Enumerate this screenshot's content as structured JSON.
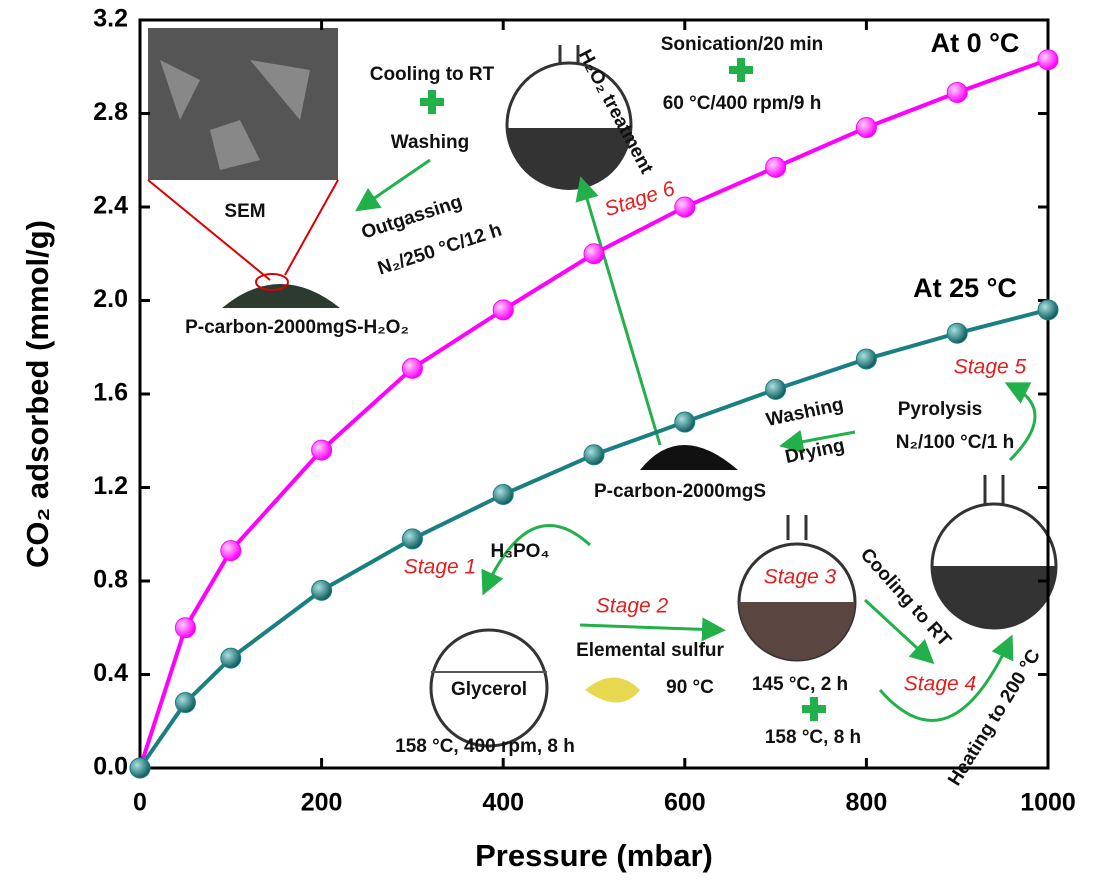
{
  "chart_data": {
    "type": "line",
    "x_label": "Pressure (mbar)",
    "y_label": "CO₂ adsorbed (mmol/g)",
    "x": [
      0,
      50,
      100,
      200,
      300,
      400,
      500,
      600,
      700,
      800,
      900,
      1000
    ],
    "series": [
      {
        "name": "At 0 °C",
        "color": "#ff00ff",
        "values": [
          0,
          0.6,
          0.93,
          1.36,
          1.71,
          1.96,
          2.2,
          2.4,
          2.57,
          2.74,
          2.89,
          3.03
        ]
      },
      {
        "name": "At 25 °C",
        "color": "#1a7f80",
        "values": [
          0,
          0.28,
          0.47,
          0.76,
          0.98,
          1.17,
          1.34,
          1.48,
          1.62,
          1.75,
          1.86,
          1.96
        ]
      }
    ],
    "xlim": [
      0,
      1000
    ],
    "xticks": [
      0,
      200,
      400,
      600,
      800,
      1000
    ],
    "ylim": [
      0,
      3.2
    ],
    "yticks": [
      {
        "value": 0,
        "label": "0.0"
      },
      0.4,
      0.8,
      1.2,
      1.6,
      {
        "value": 2,
        "label": "2.0"
      },
      2.4,
      2.8,
      3.2
    ],
    "annotations": [
      "Cooling to RT",
      "Washing",
      "SEM",
      "Outgassing",
      "N₂/250 °C/12 h",
      "P-carbon-2000mgS-H₂O₂",
      "H₂O₂ treatment",
      "Sonication/20 min",
      "60 °C/400 rpm/9 h",
      "Stage 6",
      "Stage 5",
      "Washing",
      "Drying",
      "Pyrolysis",
      "N₂/100 °C/1 h",
      "P-carbon-2000mgS",
      "Stage 1",
      "H₃PO₄",
      "Stage 2",
      "Elemental sulfur",
      "90 °C",
      "Glycerol",
      "158 °C, 400 rpm, 8 h",
      "Stage 3",
      "Cooling to RT",
      "145 °C, 2 h",
      "158 °C, 8 h",
      "Stage 4",
      "Heating to 200 °C"
    ]
  }
}
